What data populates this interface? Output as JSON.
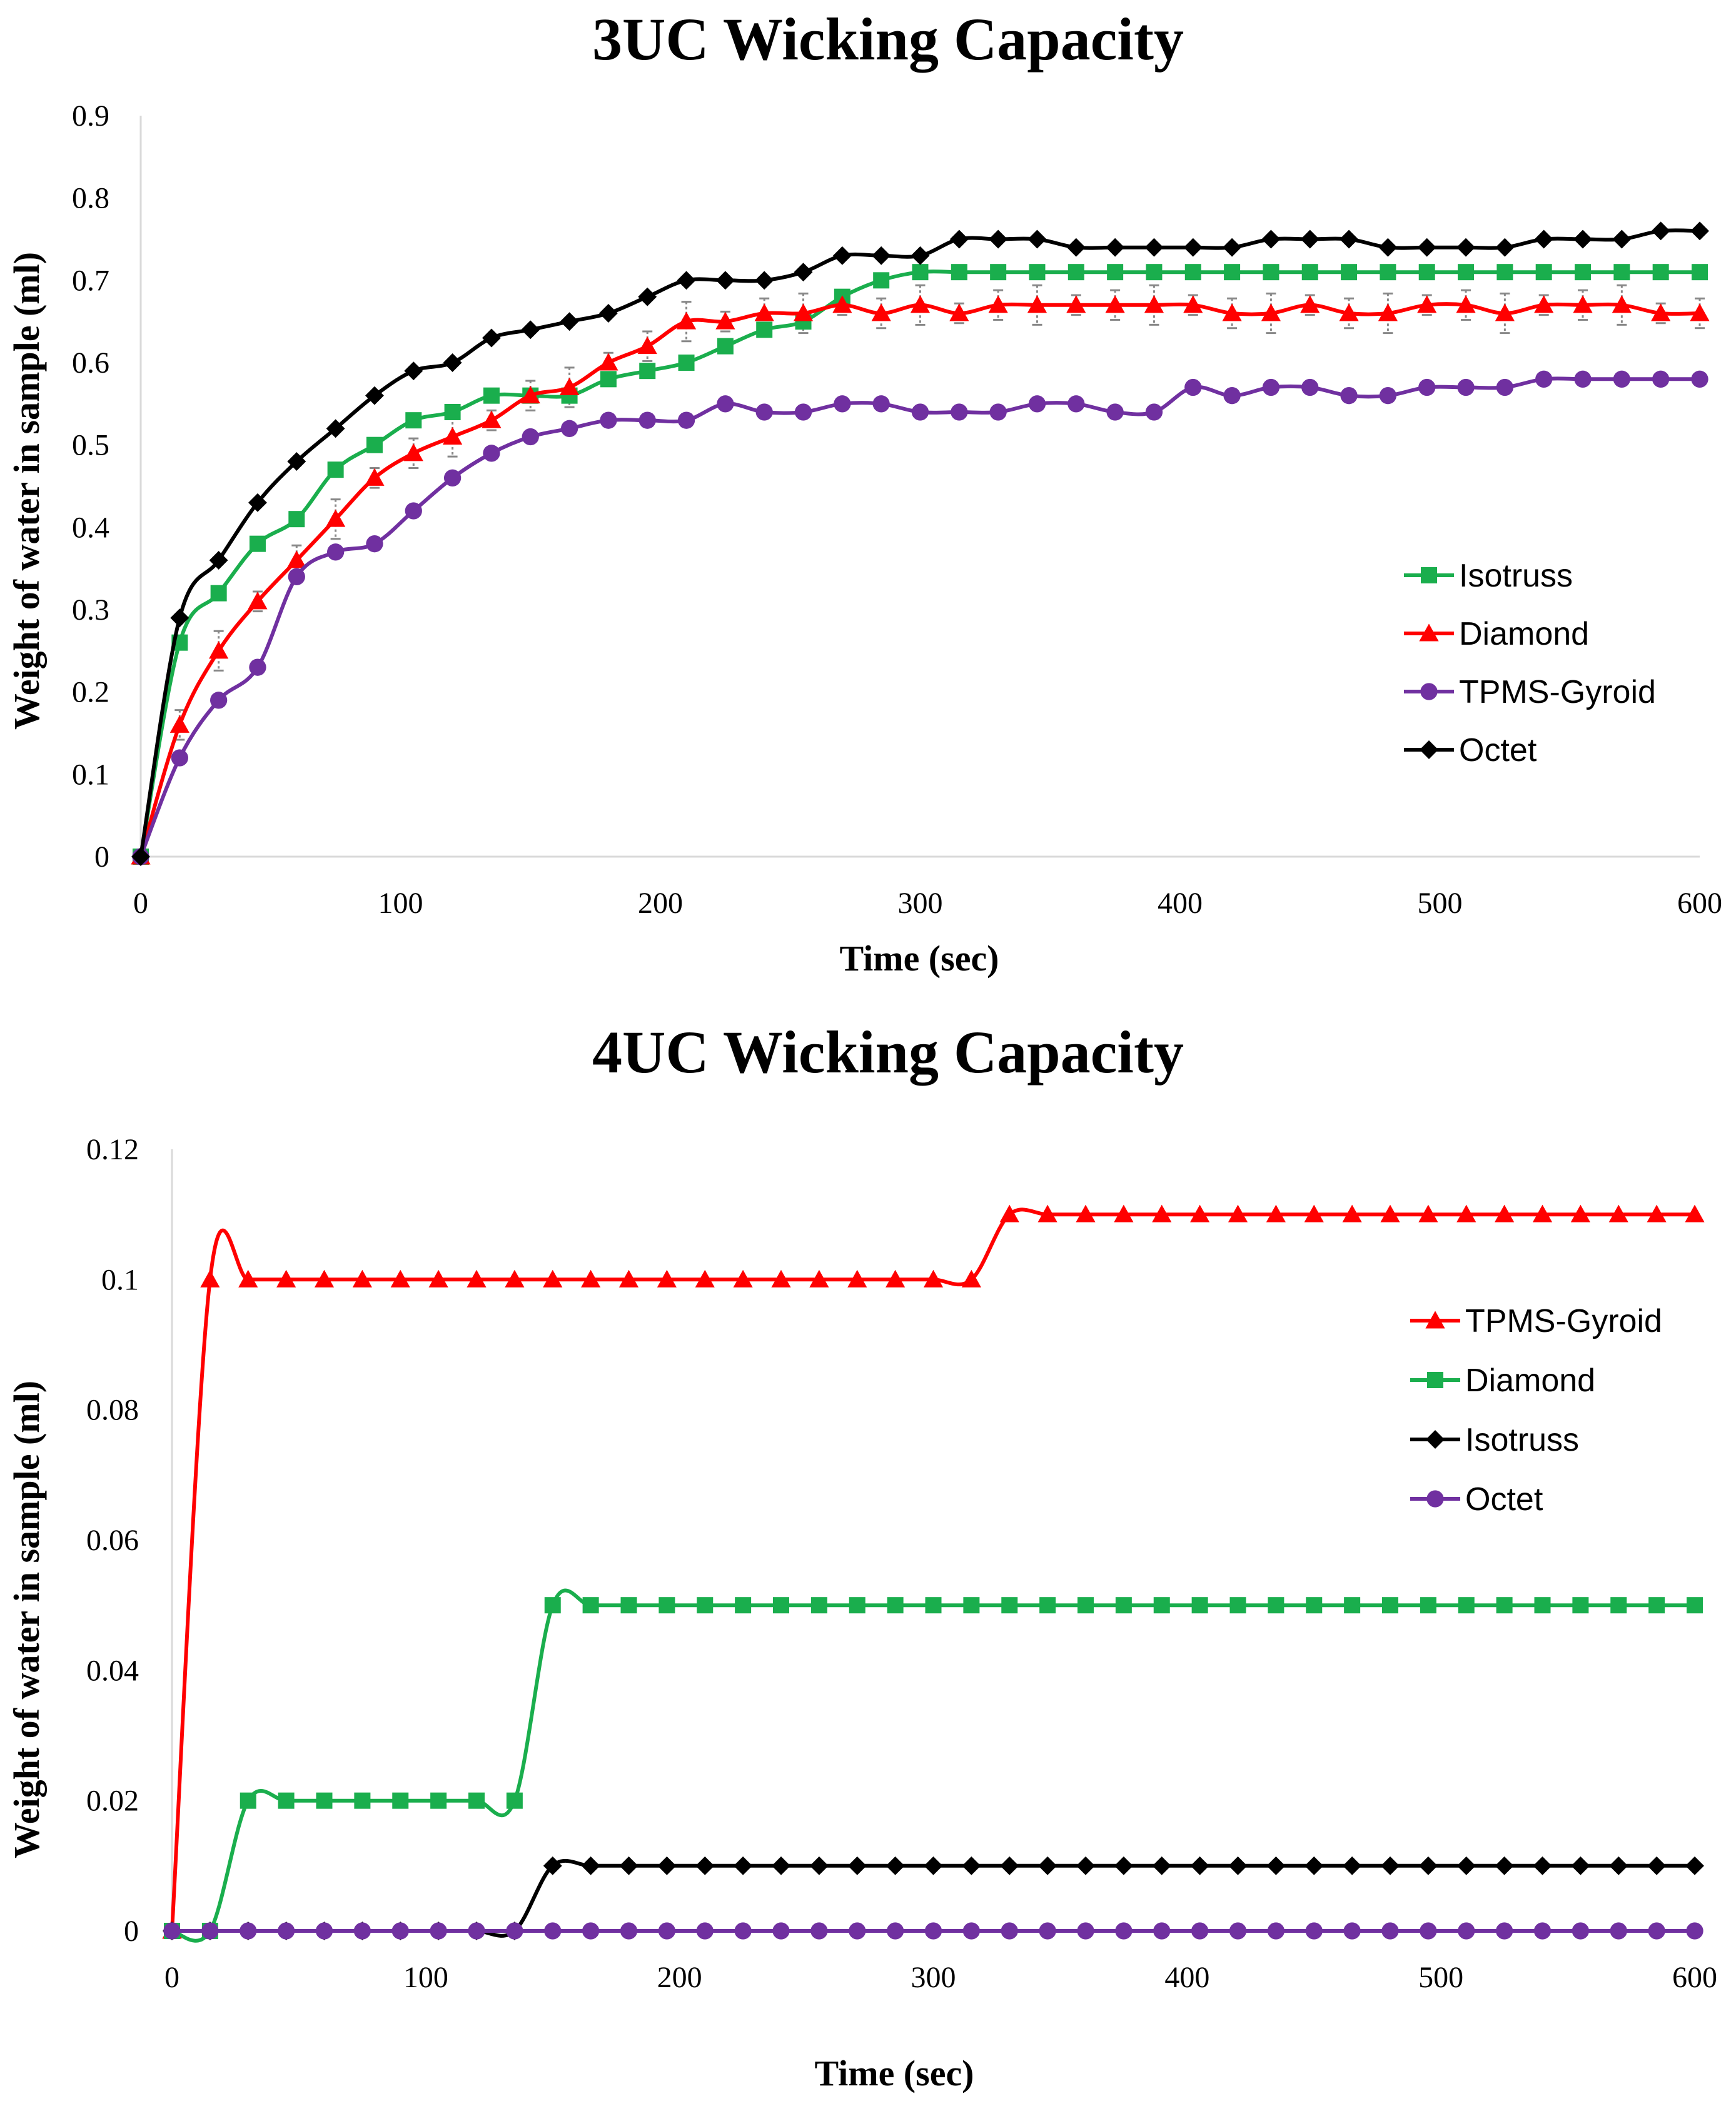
{
  "chart_data": [
    {
      "type": "line",
      "title": "3UC Wicking Capacity",
      "xlabel": "Time (sec)",
      "ylabel": "Weight of water in sample (ml)",
      "xlim": [
        0,
        600
      ],
      "ylim": [
        0,
        0.9
      ],
      "xticks": [
        "0",
        "100",
        "200",
        "300",
        "400",
        "500",
        "600"
      ],
      "yticks": [
        "0",
        "0.1",
        "0.2",
        "0.3",
        "0.4",
        "0.5",
        "0.6",
        "0.7",
        "0.8",
        "0.9"
      ],
      "legend_position": "right",
      "x": [
        0,
        15,
        30,
        45,
        60,
        75,
        90,
        105,
        120,
        135,
        150,
        165,
        180,
        195,
        210,
        225,
        240,
        255,
        270,
        285,
        300,
        315,
        330,
        345,
        360,
        375,
        390,
        405,
        420,
        435,
        450,
        465,
        480,
        495,
        510,
        525,
        540,
        555,
        570,
        585,
        600
      ],
      "series": [
        {
          "name": "Isotruss",
          "color": "#1aae4d",
          "marker": "square",
          "values": [
            0,
            0.26,
            0.32,
            0.38,
            0.41,
            0.47,
            0.5,
            0.53,
            0.54,
            0.56,
            0.56,
            0.56,
            0.58,
            0.59,
            0.6,
            0.62,
            0.64,
            0.65,
            0.68,
            0.7,
            0.71,
            0.71,
            0.71,
            0.71,
            0.71,
            0.71,
            0.71,
            0.71,
            0.71,
            0.71,
            0.71,
            0.71,
            0.71,
            0.71,
            0.71,
            0.71,
            0.71,
            0.71,
            0.71,
            0.71,
            0.71
          ]
        },
        {
          "name": "Diamond",
          "color": "#ff0000",
          "marker": "triangle",
          "values": [
            0,
            0.16,
            0.25,
            0.31,
            0.36,
            0.41,
            0.46,
            0.49,
            0.51,
            0.53,
            0.56,
            0.57,
            0.6,
            0.62,
            0.65,
            0.65,
            0.66,
            0.66,
            0.67,
            0.66,
            0.67,
            0.66,
            0.67,
            0.67,
            0.67,
            0.67,
            0.67,
            0.67,
            0.66,
            0.66,
            0.67,
            0.66,
            0.66,
            0.67,
            0.67,
            0.66,
            0.67,
            0.67,
            0.67,
            0.66,
            0.66
          ]
        },
        {
          "name": "TPMS-Gyroid",
          "color": "#7030a0",
          "marker": "circle",
          "values": [
            0,
            0.12,
            0.19,
            0.23,
            0.34,
            0.37,
            0.38,
            0.42,
            0.46,
            0.49,
            0.51,
            0.52,
            0.53,
            0.53,
            0.53,
            0.55,
            0.54,
            0.54,
            0.55,
            0.55,
            0.54,
            0.54,
            0.54,
            0.55,
            0.55,
            0.54,
            0.54,
            0.57,
            0.56,
            0.57,
            0.57,
            0.56,
            0.56,
            0.57,
            0.57,
            0.57,
            0.58,
            0.58,
            0.58,
            0.58,
            0.58
          ]
        },
        {
          "name": "Octet",
          "color": "#000000",
          "marker": "diamond",
          "values": [
            0,
            0.29,
            0.36,
            0.43,
            0.48,
            0.52,
            0.56,
            0.59,
            0.6,
            0.63,
            0.64,
            0.65,
            0.66,
            0.68,
            0.7,
            0.7,
            0.7,
            0.71,
            0.73,
            0.73,
            0.73,
            0.75,
            0.75,
            0.75,
            0.74,
            0.74,
            0.74,
            0.74,
            0.74,
            0.75,
            0.75,
            0.75,
            0.74,
            0.74,
            0.74,
            0.74,
            0.75,
            0.75,
            0.75,
            0.76,
            0.76
          ]
        }
      ]
    },
    {
      "type": "line",
      "title": "4UC Wicking Capacity",
      "xlabel": "Time (sec)",
      "ylabel": "Weight of water in sample (ml)",
      "xlim": [
        0,
        600
      ],
      "ylim": [
        0,
        0.12
      ],
      "xticks": [
        "0",
        "100",
        "200",
        "300",
        "400",
        "500",
        "600"
      ],
      "yticks": [
        "0",
        "0.02",
        "0.04",
        "0.06",
        "0.08",
        "0.1",
        "0.12"
      ],
      "legend_position": "right",
      "x": [
        0,
        15,
        30,
        45,
        60,
        75,
        90,
        105,
        120,
        135,
        150,
        165,
        180,
        195,
        210,
        225,
        240,
        255,
        270,
        285,
        300,
        315,
        330,
        345,
        360,
        375,
        390,
        405,
        420,
        435,
        450,
        465,
        480,
        495,
        510,
        525,
        540,
        555,
        570,
        585,
        600
      ],
      "series": [
        {
          "name": "TPMS-Gyroid",
          "color": "#ff0000",
          "marker": "triangle",
          "values": [
            0,
            0.1,
            0.1,
            0.1,
            0.1,
            0.1,
            0.1,
            0.1,
            0.1,
            0.1,
            0.1,
            0.1,
            0.1,
            0.1,
            0.1,
            0.1,
            0.1,
            0.1,
            0.1,
            0.1,
            0.1,
            0.1,
            0.11,
            0.11,
            0.11,
            0.11,
            0.11,
            0.11,
            0.11,
            0.11,
            0.11,
            0.11,
            0.11,
            0.11,
            0.11,
            0.11,
            0.11,
            0.11,
            0.11,
            0.11,
            0.11
          ]
        },
        {
          "name": "Diamond",
          "color": "#1aae4d",
          "marker": "square",
          "values": [
            0,
            0,
            0.02,
            0.02,
            0.02,
            0.02,
            0.02,
            0.02,
            0.02,
            0.02,
            0.05,
            0.05,
            0.05,
            0.05,
            0.05,
            0.05,
            0.05,
            0.05,
            0.05,
            0.05,
            0.05,
            0.05,
            0.05,
            0.05,
            0.05,
            0.05,
            0.05,
            0.05,
            0.05,
            0.05,
            0.05,
            0.05,
            0.05,
            0.05,
            0.05,
            0.05,
            0.05,
            0.05,
            0.05,
            0.05,
            0.05
          ]
        },
        {
          "name": "Isotruss",
          "color": "#000000",
          "marker": "diamond",
          "values": [
            0,
            0,
            0,
            0,
            0,
            0,
            0,
            0,
            0,
            0,
            0.01,
            0.01,
            0.01,
            0.01,
            0.01,
            0.01,
            0.01,
            0.01,
            0.01,
            0.01,
            0.01,
            0.01,
            0.01,
            0.01,
            0.01,
            0.01,
            0.01,
            0.01,
            0.01,
            0.01,
            0.01,
            0.01,
            0.01,
            0.01,
            0.01,
            0.01,
            0.01,
            0.01,
            0.01,
            0.01,
            0.01
          ]
        },
        {
          "name": "Octet",
          "color": "#7030a0",
          "marker": "circle",
          "values": [
            0,
            0,
            0,
            0,
            0,
            0,
            0,
            0,
            0,
            0,
            0,
            0,
            0,
            0,
            0,
            0,
            0,
            0,
            0,
            0,
            0,
            0,
            0,
            0,
            0,
            0,
            0,
            0,
            0,
            0,
            0,
            0,
            0,
            0,
            0,
            0,
            0,
            0,
            0,
            0,
            0
          ]
        }
      ]
    }
  ]
}
